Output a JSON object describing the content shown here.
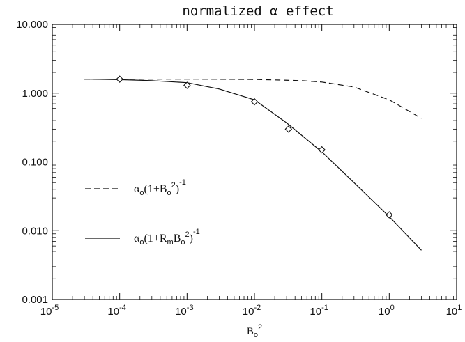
{
  "chart_data": {
    "type": "line",
    "title": "normalized α effect",
    "xlabel": "B₀²",
    "ylabel": "",
    "xscale": "log",
    "yscale": "log",
    "xlim": [
      1e-05,
      10
    ],
    "ylim": [
      0.001,
      10
    ],
    "x_ticks": [
      {
        "base": "10",
        "exp": "-5",
        "value": 1e-05
      },
      {
        "base": "10",
        "exp": "-4",
        "value": 0.0001
      },
      {
        "base": "10",
        "exp": "-3",
        "value": 0.001
      },
      {
        "base": "10",
        "exp": "-2",
        "value": 0.01
      },
      {
        "base": "10",
        "exp": "-1",
        "value": 0.1
      },
      {
        "base": "10",
        "exp": "0",
        "value": 1
      },
      {
        "base": "10",
        "exp": "1",
        "value": 10
      }
    ],
    "y_ticks": [
      {
        "label": "0.001",
        "value": 0.001
      },
      {
        "label": "0.010",
        "value": 0.01
      },
      {
        "label": "0.100",
        "value": 0.1
      },
      {
        "label": "1.000",
        "value": 1
      },
      {
        "label": "10.000",
        "value": 10
      }
    ],
    "grid": false,
    "legend_position": "left",
    "series": [
      {
        "name": "α₀(1+B₀²)⁻¹",
        "style": "dashed",
        "color": "#111111",
        "x": [
          3e-05,
          0.0001,
          0.001,
          0.01,
          0.05,
          0.1,
          0.3,
          1,
          3
        ],
        "y": [
          1.6,
          1.6,
          1.6,
          1.58,
          1.52,
          1.45,
          1.23,
          0.8,
          0.43
        ]
      },
      {
        "name": "α₀(1+RₘB₀²)⁻¹",
        "style": "solid",
        "color": "#111111",
        "x": [
          3e-05,
          0.0001,
          0.0003,
          0.001,
          0.003,
          0.01,
          0.03,
          0.1,
          0.3,
          1,
          3
        ],
        "y": [
          1.6,
          1.57,
          1.52,
          1.42,
          1.15,
          0.8,
          0.37,
          0.14,
          0.05,
          0.016,
          0.0052
        ]
      },
      {
        "name": "",
        "style": "markers",
        "marker": "diamond",
        "color": "#111111",
        "x": [
          0.0001,
          0.001,
          0.01,
          0.032,
          0.1,
          1
        ],
        "y": [
          1.6,
          1.3,
          0.75,
          0.3,
          0.15,
          0.017
        ]
      }
    ],
    "legend": [
      {
        "series_index": 0,
        "style": "dashed",
        "label_parts": [
          "α",
          "o",
          "(1+B",
          "o",
          "2",
          ")",
          "-1"
        ]
      },
      {
        "series_index": 1,
        "style": "solid",
        "label_parts": [
          "α",
          "o",
          "(1+R",
          "m",
          "B",
          "o",
          "2",
          ")",
          "-1"
        ]
      }
    ],
    "xlabel_parts": [
      "B",
      "o",
      "2"
    ]
  }
}
